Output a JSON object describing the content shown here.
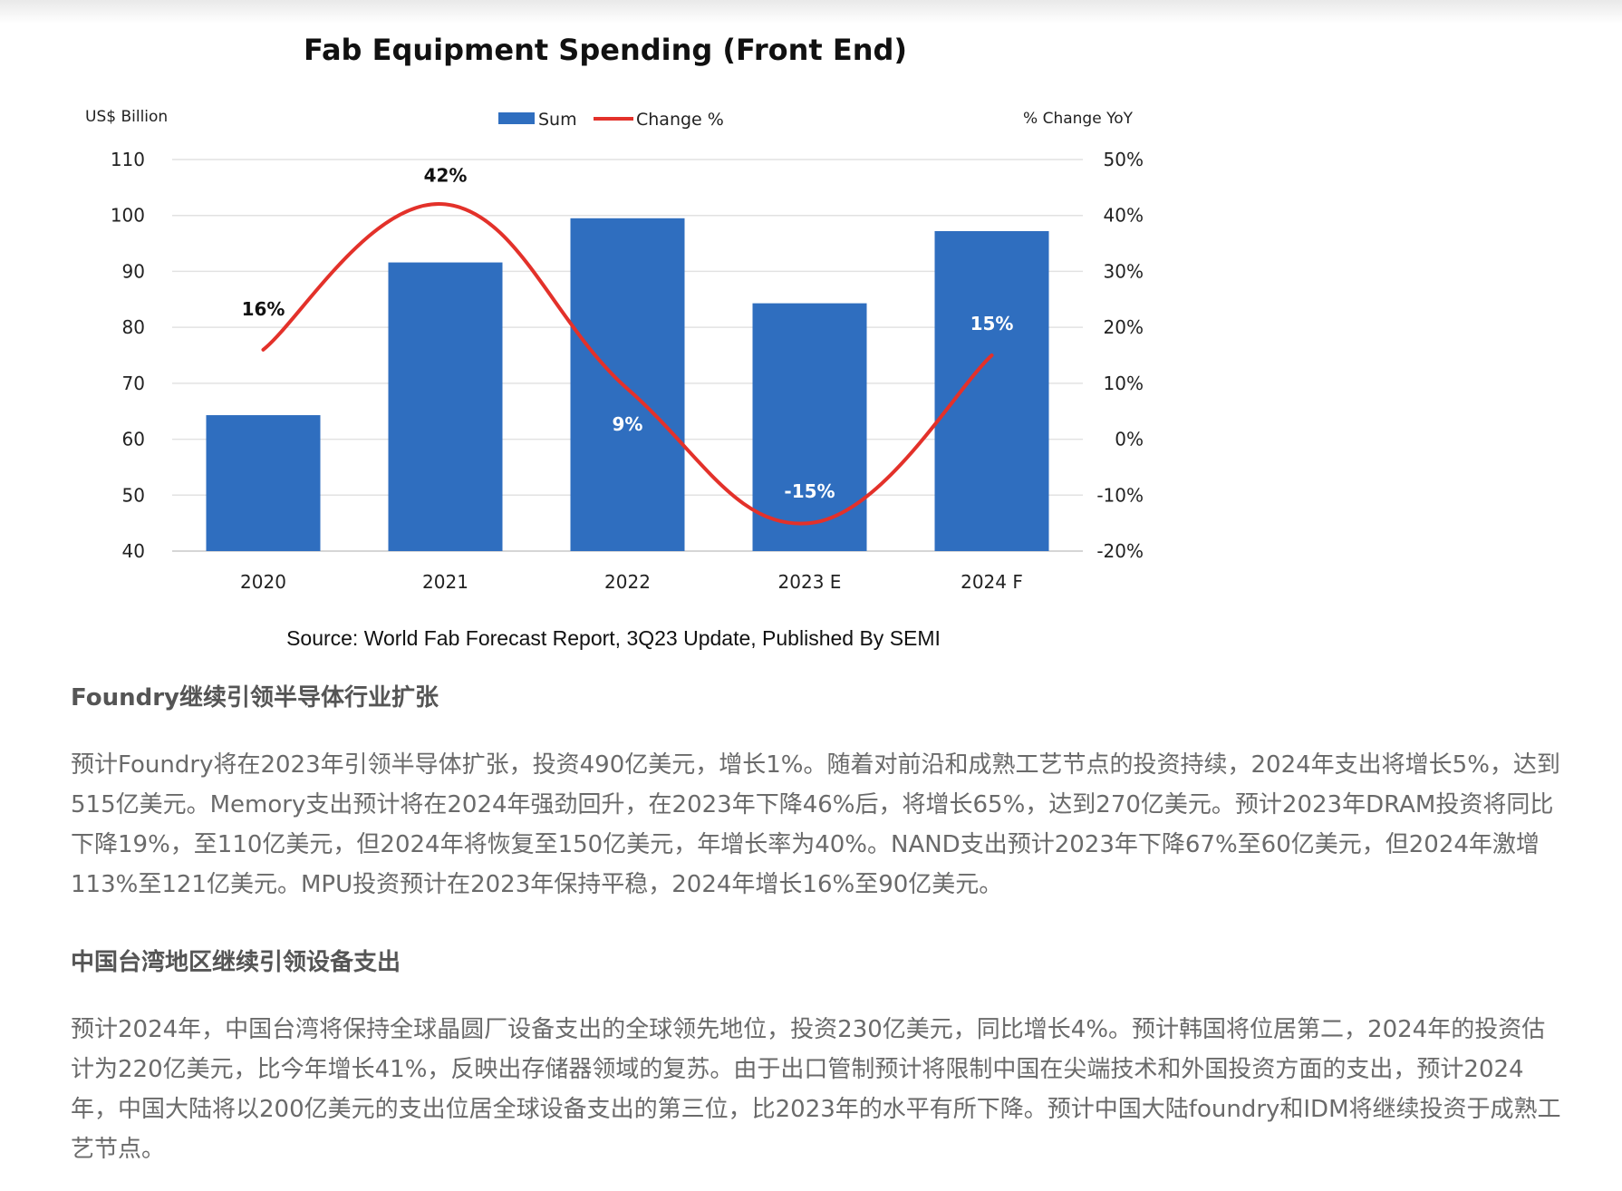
{
  "chart_data": {
    "type": "bar",
    "title": "Fab Equipment Spending (Front End)",
    "y_left_label": "US$ Billion",
    "y_right_label": "% Change YoY",
    "categories": [
      "2020",
      "2021",
      "2022",
      "2023 E",
      "2024 F"
    ],
    "series": [
      {
        "name": "Sum",
        "type": "bar",
        "axis": "left",
        "color": "#2f6ebf",
        "values": [
          64.3,
          91.6,
          99.5,
          84.3,
          97.2
        ]
      },
      {
        "name": "Change %",
        "type": "line",
        "axis": "right",
        "color": "#e3312a",
        "values": [
          16,
          42,
          9,
          -15,
          15
        ]
      }
    ],
    "data_labels": [
      "16%",
      "42%",
      "9%",
      "-15%",
      "15%"
    ],
    "y_left_ticks": [
      "110",
      "100",
      "90",
      "80",
      "70",
      "60",
      "50",
      "40"
    ],
    "y_left_range": [
      40,
      110
    ],
    "y_right_ticks": [
      "50%",
      "40%",
      "30%",
      "20%",
      "10%",
      "0%",
      "-10%",
      "-20%"
    ],
    "y_right_range": [
      -20,
      50
    ],
    "grid": true,
    "legend_position": "top-center",
    "source": "Source: World Fab Forecast Report, 3Q23 Update, Published By SEMI"
  },
  "article": {
    "heading1": "Foundry继续引领半导体行业扩张",
    "para1": "预计Foundry将在2023年引领半导体扩张，投资490亿美元，增长1%。随着对前沿和成熟工艺节点的投资持续，2024年支出将增长5%，达到515亿美元。Memory支出预计将在2024年强劲回升，在2023年下降46%后，将增长65%，达到270亿美元。预计2023年DRAM投资将同比下降19%，至110亿美元，但2024年将恢复至150亿美元，年增长率为40%。NAND支出预计2023年下降67%至60亿美元，但2024年激增113%至121亿美元。MPU投资预计在2023年保持平稳，2024年增长16%至90亿美元。",
    "heading2": "中国台湾地区继续引领设备支出",
    "para2": "预计2024年，中国台湾将保持全球晶圆厂设备支出的全球领先地位，投资230亿美元，同比增长4%。预计韩国将位居第二，2024年的投资估计为220亿美元，比今年增长41%，反映出存储器领域的复苏。由于出口管制预计将限制中国在尖端技术和外国投资方面的支出，预计2024年，中国大陆将以200亿美元的支出位居全球设备支出的第三位，比2023年的水平有所下降。预计中国大陆foundry和IDM将继续投资于成熟工艺节点。"
  }
}
